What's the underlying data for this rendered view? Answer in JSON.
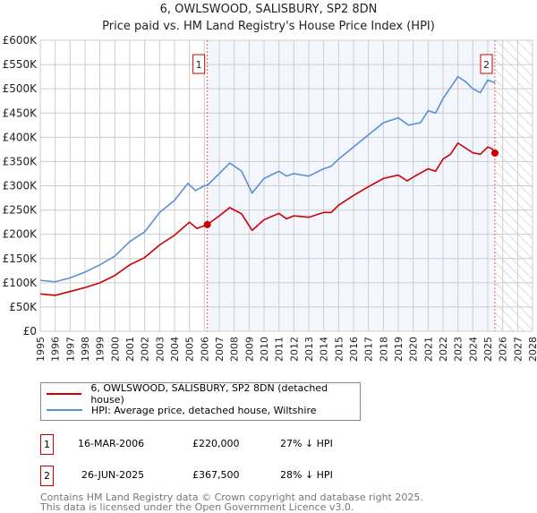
{
  "chart_data": {
    "type": "line",
    "title": "6, OWLSWOOD, SALISBURY, SP2 8DN",
    "subtitle": "Price paid vs. HM Land Registry's House Price Index (HPI)",
    "xlim": [
      1995,
      2028
    ],
    "ylim": [
      0,
      600000
    ],
    "x_ticks": [
      "1995",
      "1996",
      "1997",
      "1998",
      "1999",
      "2000",
      "2001",
      "2002",
      "2003",
      "2004",
      "2005",
      "2006",
      "2007",
      "2008",
      "2009",
      "2010",
      "2011",
      "2012",
      "2013",
      "2014",
      "2015",
      "2016",
      "2017",
      "2018",
      "2019",
      "2020",
      "2021",
      "2022",
      "2023",
      "2024",
      "2025",
      "2026",
      "2027",
      "2028"
    ],
    "y_ticks": [
      {
        "v": 0,
        "l": "£0"
      },
      {
        "v": 50000,
        "l": "£50K"
      },
      {
        "v": 100000,
        "l": "£100K"
      },
      {
        "v": 150000,
        "l": "£150K"
      },
      {
        "v": 200000,
        "l": "£200K"
      },
      {
        "v": 250000,
        "l": "£250K"
      },
      {
        "v": 300000,
        "l": "£300K"
      },
      {
        "v": 350000,
        "l": "£350K"
      },
      {
        "v": 400000,
        "l": "£400K"
      },
      {
        "v": 450000,
        "l": "£450K"
      },
      {
        "v": 500000,
        "l": "£500K"
      },
      {
        "v": 550000,
        "l": "£550K"
      },
      {
        "v": 600000,
        "l": "£600K"
      }
    ],
    "grid": true,
    "series": [
      {
        "name": "6, OWLSWOOD, SALISBURY, SP2 8DN (detached house)",
        "color": "#cc0000",
        "x": [
          1995,
          1996,
          1997,
          1998,
          1999,
          2000,
          2001,
          2002,
          2003,
          2004,
          2005,
          2005.5,
          2006.2,
          2007,
          2007.7,
          2008.5,
          2009.2,
          2010,
          2011,
          2011.5,
          2012,
          2013,
          2014,
          2014.5,
          2015,
          2016,
          2017,
          2018,
          2019,
          2019.6,
          2020,
          2021,
          2021.5,
          2022,
          2022.5,
          2023,
          2023.5,
          2024,
          2024.5,
          2025,
          2025.3,
          2025.48
        ],
        "y": [
          77000,
          74000,
          82000,
          90000,
          100000,
          115000,
          137000,
          152000,
          178000,
          198000,
          225000,
          212000,
          220000,
          238000,
          255000,
          242000,
          208000,
          230000,
          243000,
          232000,
          238000,
          235000,
          245000,
          245000,
          260000,
          280000,
          298000,
          315000,
          322000,
          310000,
          318000,
          335000,
          330000,
          355000,
          365000,
          388000,
          378000,
          368000,
          365000,
          380000,
          376000,
          367500
        ]
      },
      {
        "name": "HPI: Average price, detached house, Wiltshire",
        "color": "#5b8fd4",
        "x": [
          1995,
          1996,
          1997,
          1998,
          1999,
          2000,
          2001,
          2002,
          2003,
          2004,
          2004.9,
          2005.4,
          2006,
          2006.2,
          2007,
          2007.7,
          2008.5,
          2009.2,
          2010,
          2011,
          2011.5,
          2012,
          2013,
          2014,
          2014.5,
          2015,
          2016,
          2017,
          2018,
          2019,
          2019.7,
          2020.5,
          2021,
          2021.5,
          2022,
          2023,
          2023.5,
          2024,
          2024.5,
          2025,
          2025.5
        ],
        "y": [
          105000,
          102000,
          110000,
          122000,
          137000,
          155000,
          185000,
          205000,
          245000,
          270000,
          305000,
          290000,
          300000,
          301000,
          325000,
          347000,
          330000,
          285000,
          315000,
          330000,
          320000,
          325000,
          320000,
          335000,
          340000,
          355000,
          380000,
          405000,
          430000,
          440000,
          425000,
          430000,
          455000,
          450000,
          480000,
          525000,
          515000,
          500000,
          492000,
          518000,
          512000
        ]
      }
    ],
    "sales": [
      {
        "id": "1",
        "date": "16-MAR-2006",
        "x": 2006.2,
        "price": "£220,000",
        "value": 220000,
        "hpi": "27% ↓ HPI"
      },
      {
        "id": "2",
        "date": "26-JUN-2025",
        "x": 2025.48,
        "price": "£367,500",
        "value": 367500,
        "hpi": "28% ↓ HPI"
      }
    ],
    "forecast_from": 2025.5
  },
  "footer": {
    "line1": "Contains HM Land Registry data © Crown copyright and database right 2025.",
    "line2": "This data is licensed under the Open Government Licence v3.0."
  }
}
